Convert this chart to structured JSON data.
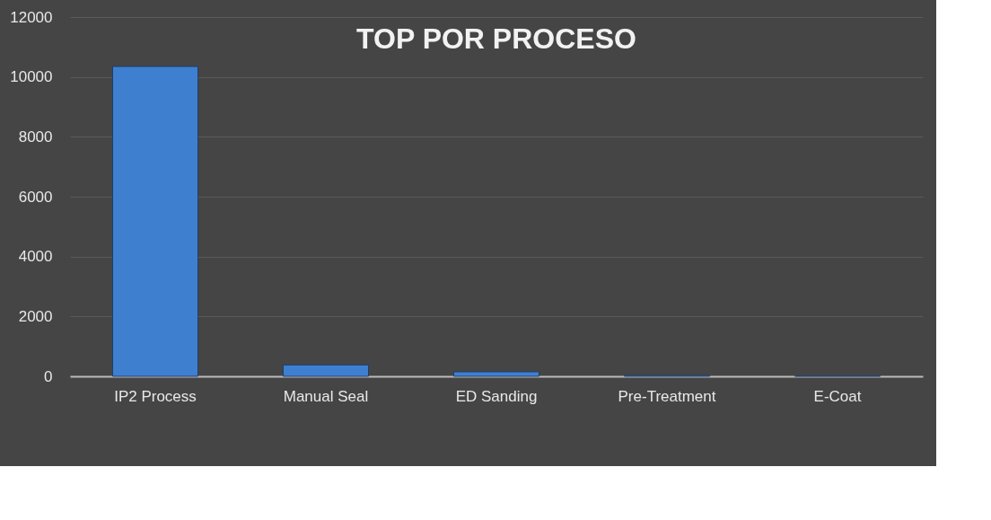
{
  "chart_data": {
    "type": "bar",
    "title": "TOP POR PROCESO",
    "categories": [
      "IP2 Process",
      "Manual Seal",
      "ED Sanding",
      "Pre-Treatment",
      "E-Coat"
    ],
    "values": [
      10350,
      380,
      150,
      30,
      10
    ],
    "color": "#3f7fd0",
    "ylim": [
      0,
      12000
    ],
    "yticks": [
      0,
      2000,
      4000,
      6000,
      8000,
      10000,
      12000
    ],
    "grid": "y"
  }
}
